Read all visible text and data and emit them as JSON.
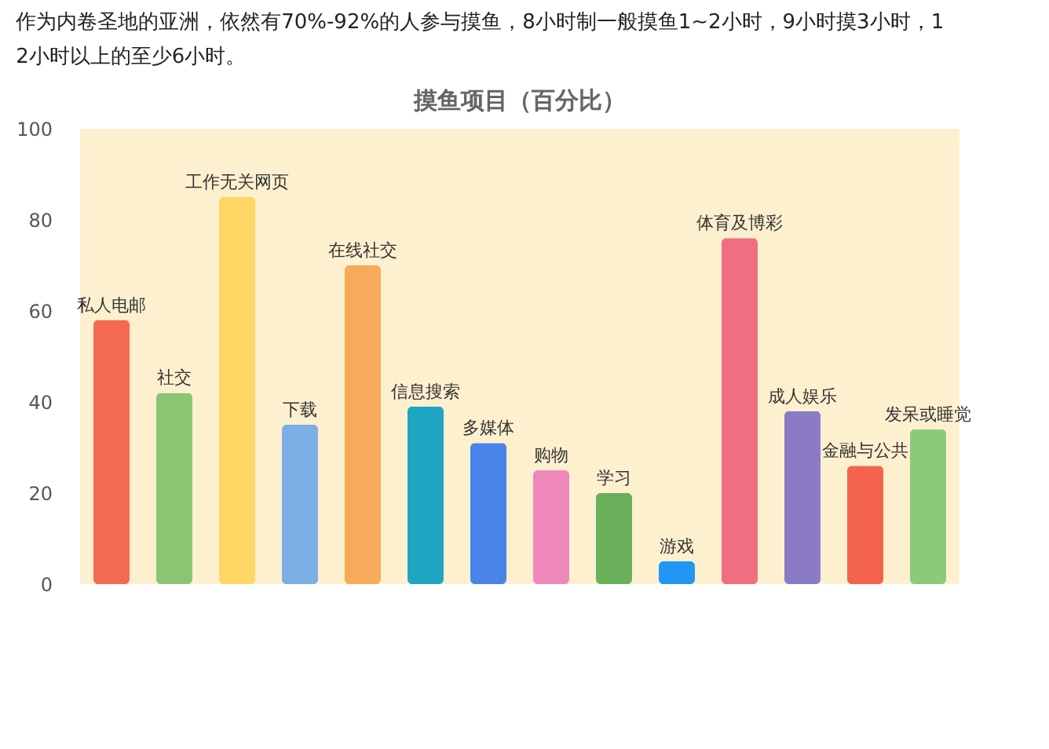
{
  "chart_data": {
    "type": "bar",
    "title": "摸鱼项目（百分比）",
    "annotations": [
      "作为内卷圣地的亚洲，依然有70%-92%的人参与摸鱼，8小时制一般摸鱼1~2小时，9小时摸3小时，12小时以上的至少6小时。"
    ],
    "categories": [
      "私人电邮",
      "社交",
      "工作无关网页",
      "下载",
      "在线社交",
      "信息搜索",
      "多媒体",
      "购物",
      "学习",
      "游戏",
      "体育及博彩",
      "成人娱乐",
      "金融与公共",
      "发呆或睡觉"
    ],
    "values": [
      58,
      42,
      85,
      35,
      70,
      39,
      31,
      25,
      20,
      5,
      76,
      38,
      26,
      34
    ],
    "colors": [
      "#f46a50",
      "#8bc572",
      "#fdd663",
      "#7bafe6",
      "#f9a95b",
      "#1ea6c2",
      "#4a84e8",
      "#ee88bb",
      "#6ab05a",
      "#2196f3",
      "#ef6f80",
      "#8b7bc7",
      "#f4634c",
      "#8dca78"
    ],
    "ylim": [
      0,
      100
    ],
    "yticks": [
      0,
      20,
      40,
      60,
      80,
      100
    ],
    "grid": false,
    "legend": false,
    "tick_labels": "y"
  }
}
